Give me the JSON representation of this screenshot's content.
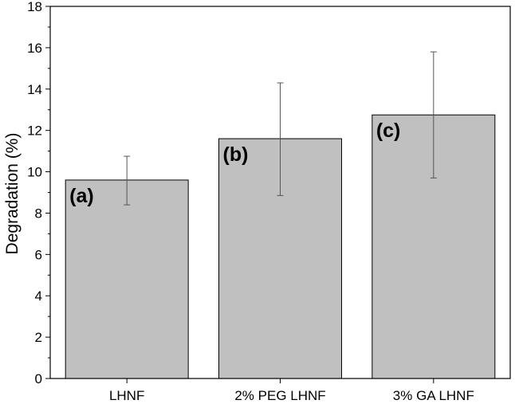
{
  "chart_data": {
    "type": "bar",
    "title": "",
    "xlabel": "",
    "ylabel": "Degradation (%)",
    "ylim": [
      0,
      18
    ],
    "yticks": [
      0,
      2,
      4,
      6,
      8,
      10,
      12,
      14,
      16,
      18
    ],
    "categories": [
      "LHNF",
      "2% PEG LHNF",
      "3% GA LHNF"
    ],
    "values": [
      9.6,
      11.6,
      12.75
    ],
    "errors_low": [
      8.4,
      8.85,
      9.7
    ],
    "errors_high": [
      10.75,
      14.3,
      15.8
    ],
    "annotations": [
      "(a)",
      "(b)",
      "(c)"
    ],
    "colors": {
      "bar": "#c0c0c0",
      "bar_edge": "#000000",
      "error": "#555555"
    },
    "grid": false
  }
}
